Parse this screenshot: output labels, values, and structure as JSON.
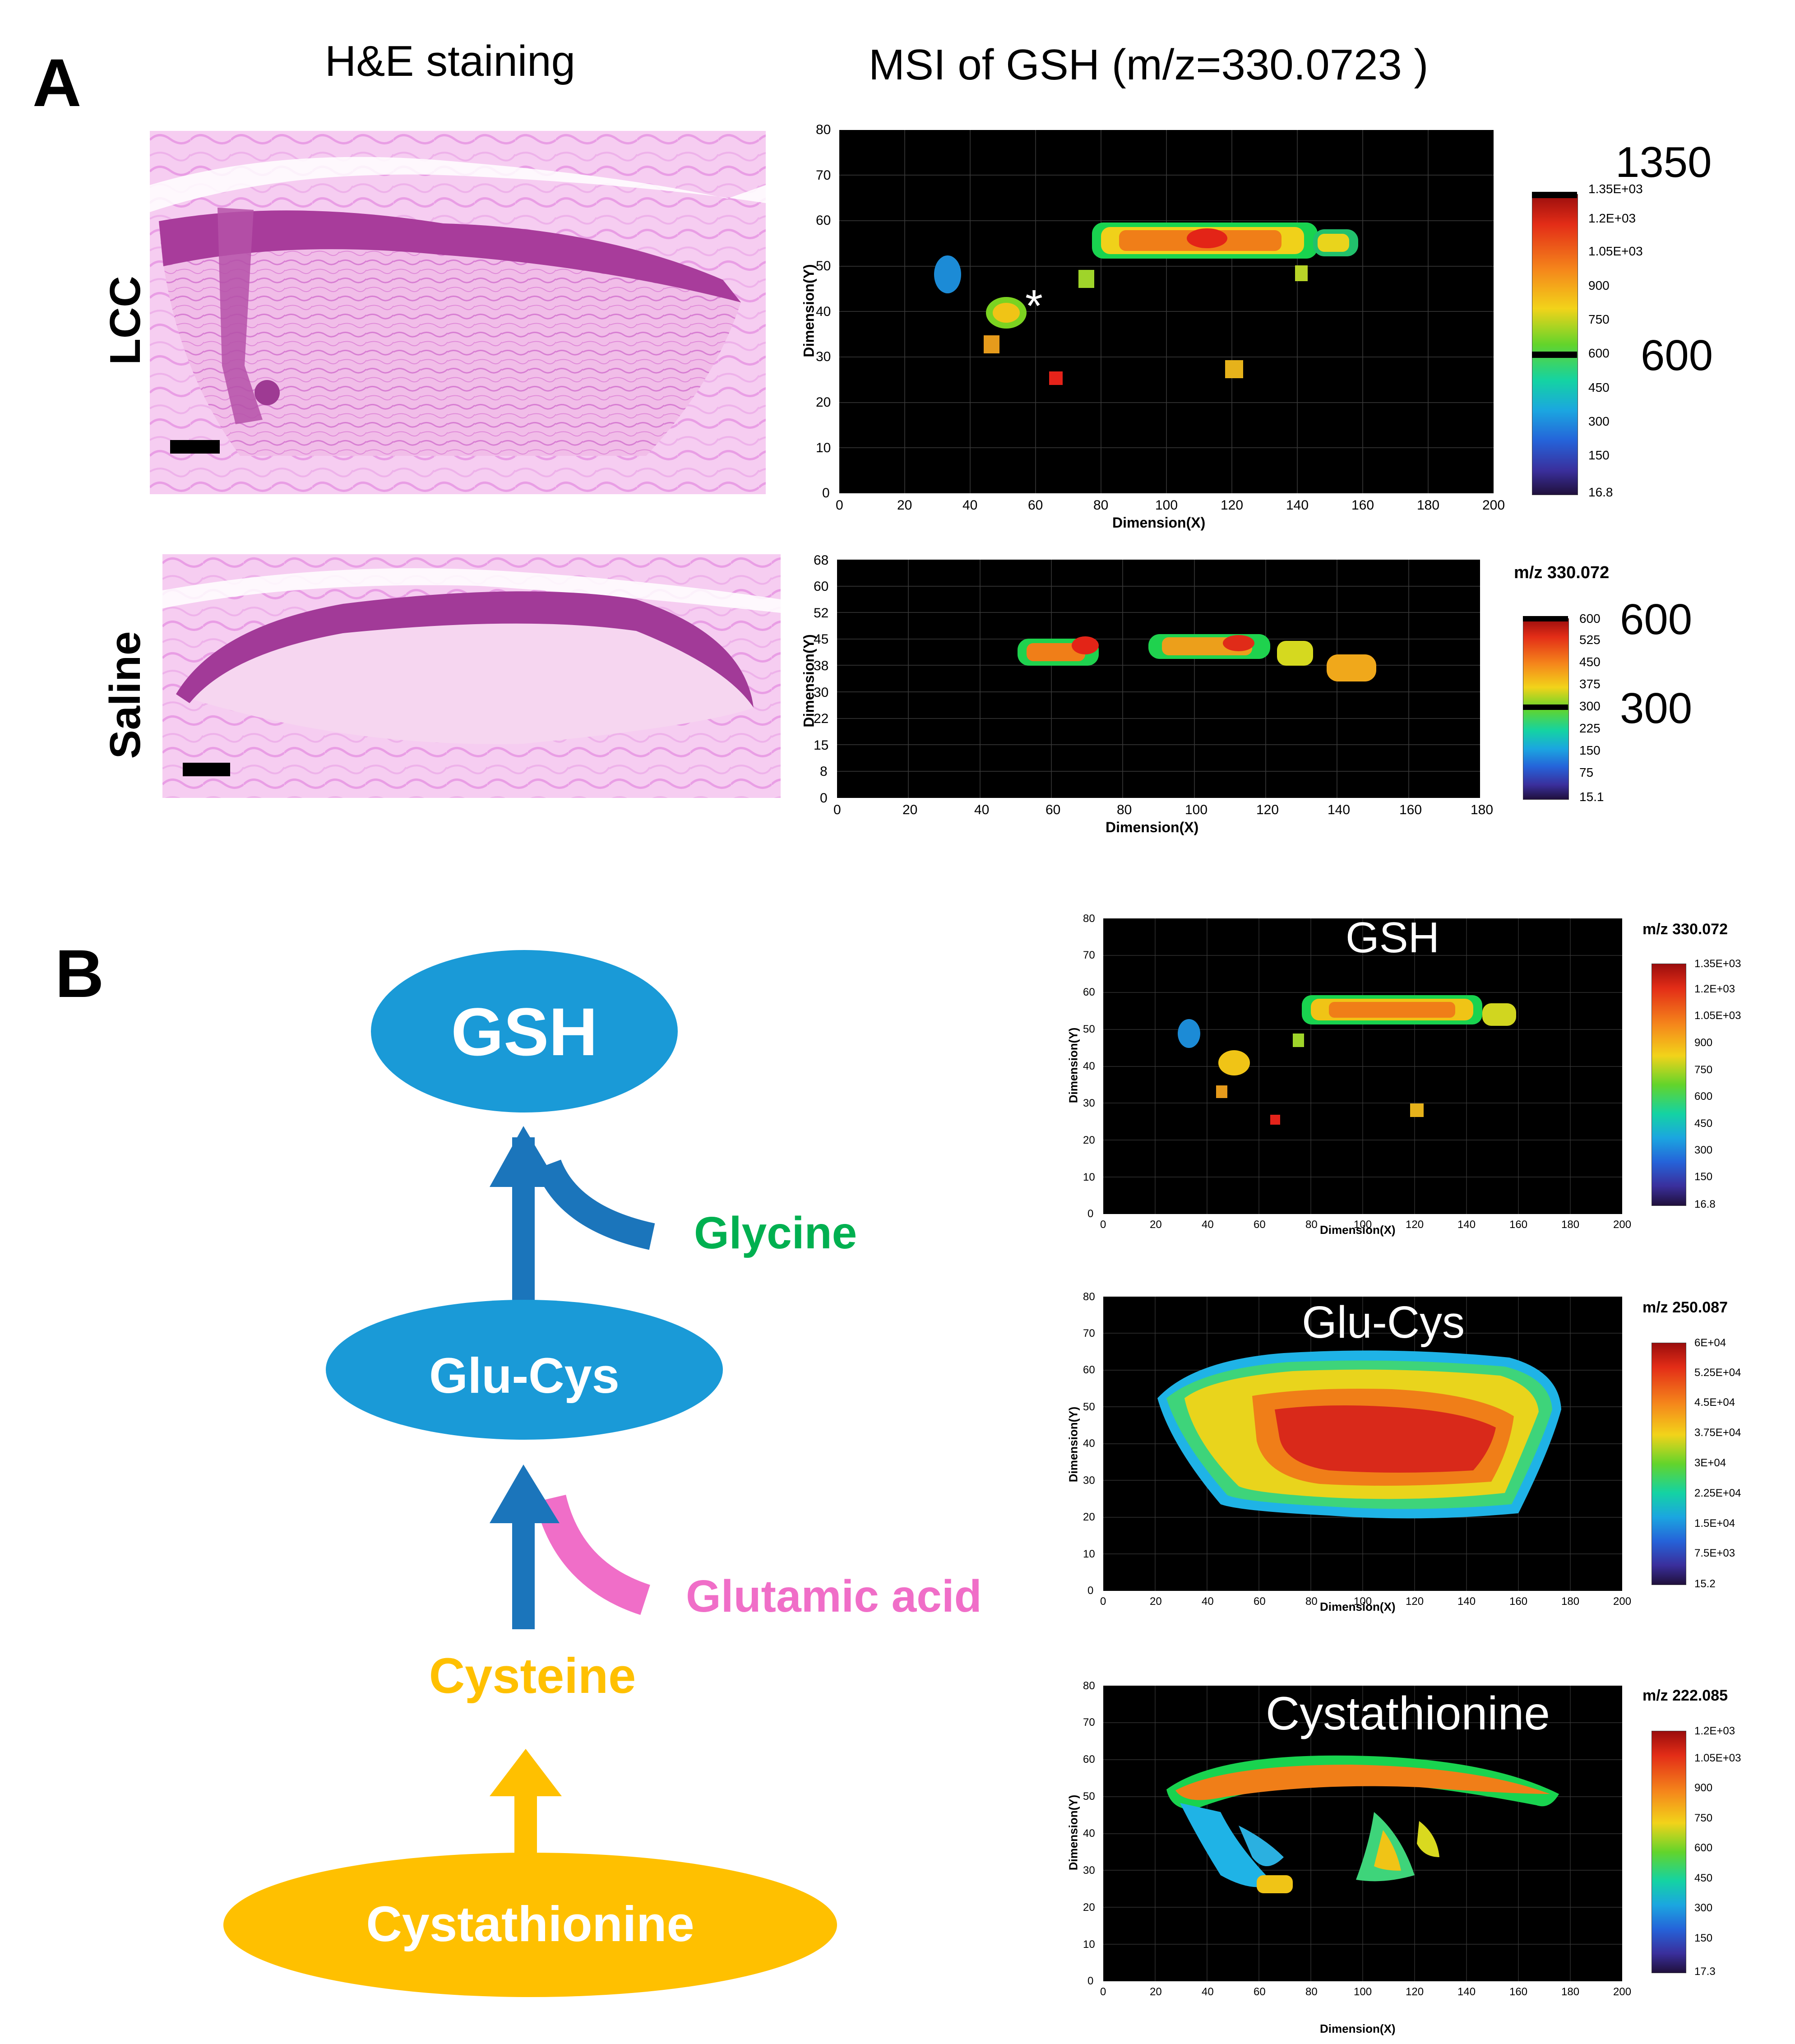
{
  "panelA": {
    "letter": "A",
    "he_title": "H&E staining",
    "msi_title": "MSI of GSH (m/z=330.0723 )",
    "rows": [
      "LCC",
      "Saline"
    ],
    "plot_top": {
      "x_ticks": [
        "0",
        "20",
        "40",
        "60",
        "80",
        "100",
        "120",
        "140",
        "160",
        "180",
        "200"
      ],
      "y_ticks": [
        "0",
        "10",
        "20",
        "30",
        "40",
        "50",
        "60",
        "70",
        "80"
      ],
      "xlabel": "Dimension(X)",
      "ylabel": "Dimension(Y)",
      "marker": "*",
      "colorbar_ticks": [
        "1.35E+03",
        "1.2E+03",
        "1.05E+03",
        "900",
        "750",
        "600",
        "450",
        "300",
        "150",
        "16.8"
      ],
      "max_label": "1350",
      "mid_label": "600"
    },
    "plot_bottom": {
      "mz": "m/z 330.072",
      "x_ticks": [
        "0",
        "20",
        "40",
        "60",
        "80",
        "100",
        "120",
        "140",
        "160",
        "180"
      ],
      "y_ticks": [
        "0",
        "8",
        "15",
        "22",
        "30",
        "38",
        "45",
        "52",
        "60",
        "68"
      ],
      "xlabel": "Dimension(X)",
      "ylabel": "Dimension(Y)",
      "colorbar_ticks": [
        "600",
        "525",
        "450",
        "375",
        "300",
        "225",
        "150",
        "75",
        "15.1"
      ],
      "max_label": "600",
      "mid_label": "300"
    }
  },
  "panelB": {
    "letter": "B",
    "nodes": {
      "gsh": "GSH",
      "glucys": "Glu-Cys",
      "glycine": "Glycine",
      "glutamic": "Glutamic acid",
      "cysteine": "Cysteine",
      "cystathionine": "Cystathionine"
    },
    "colors": {
      "blue_node": "#1A9AD7",
      "blue_arrow": "#1B75BB",
      "green": "#00B050",
      "pink": "#F06EC8",
      "yellow": "#FFC000"
    },
    "maps": [
      {
        "overlay": "GSH",
        "mz": "m/z 330.072",
        "x_ticks": [
          "0",
          "20",
          "40",
          "60",
          "80",
          "100",
          "120",
          "140",
          "160",
          "180",
          "200"
        ],
        "y_ticks": [
          "0",
          "10",
          "20",
          "30",
          "40",
          "50",
          "60",
          "70",
          "80"
        ],
        "xlabel": "Dimension(X)",
        "ylabel": "Dimension(Y)",
        "colorbar_ticks": [
          "1.35E+03",
          "1.2E+03",
          "1.05E+03",
          "900",
          "750",
          "600",
          "450",
          "300",
          "150",
          "16.8"
        ]
      },
      {
        "overlay": "Glu-Cys",
        "mz": "m/z 250.087",
        "x_ticks": [
          "0",
          "20",
          "40",
          "60",
          "80",
          "100",
          "120",
          "140",
          "160",
          "180",
          "200"
        ],
        "y_ticks": [
          "0",
          "10",
          "20",
          "30",
          "40",
          "50",
          "60",
          "70",
          "80"
        ],
        "xlabel": "Dimension(X)",
        "ylabel": "Dimension(Y)",
        "colorbar_ticks": [
          "6E+04",
          "5.25E+04",
          "4.5E+04",
          "3.75E+04",
          "3E+04",
          "2.25E+04",
          "1.5E+04",
          "7.5E+03",
          "15.2"
        ]
      },
      {
        "overlay": "Cystathionine",
        "mz": "m/z 222.085",
        "x_ticks": [
          "0",
          "20",
          "40",
          "60",
          "80",
          "100",
          "120",
          "140",
          "160",
          "180",
          "200"
        ],
        "y_ticks": [
          "0",
          "10",
          "20",
          "30",
          "40",
          "50",
          "60",
          "70",
          "80"
        ],
        "xlabel": "Dimension(X)",
        "ylabel": "Dimension(Y)",
        "colorbar_ticks": [
          "1.2E+03",
          "1.05E+03",
          "900",
          "750",
          "600",
          "450",
          "300",
          "150",
          "17.3"
        ]
      }
    ]
  }
}
